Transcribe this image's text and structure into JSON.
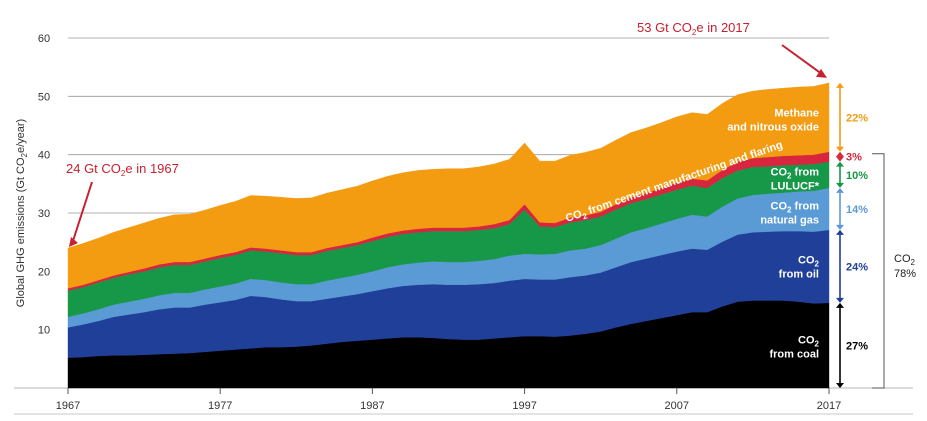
{
  "chart_data": {
    "type": "area",
    "stacked": true,
    "title": "",
    "ylabel_parts": [
      "Global GHG emissions (Gt CO",
      "2",
      "e/year)"
    ],
    "x_ticks": [
      1967,
      1977,
      1987,
      1997,
      2007,
      2017
    ],
    "y_ticks": [
      10,
      20,
      30,
      40,
      50,
      60
    ],
    "xlim": [
      1967,
      2017
    ],
    "ylim": [
      0,
      60
    ],
    "grid": "horizontal",
    "x": [
      1967,
      1968,
      1969,
      1970,
      1971,
      1972,
      1973,
      1974,
      1975,
      1976,
      1977,
      1978,
      1979,
      1980,
      1981,
      1982,
      1983,
      1984,
      1985,
      1986,
      1987,
      1988,
      1989,
      1990,
      1991,
      1992,
      1993,
      1994,
      1995,
      1996,
      1997,
      1998,
      1999,
      2000,
      2001,
      2002,
      2003,
      2004,
      2005,
      2006,
      2007,
      2008,
      2009,
      2010,
      2011,
      2012,
      2013,
      2014,
      2015,
      2016,
      2017
    ],
    "series": [
      {
        "key": "coal",
        "color": "#000000",
        "values": [
          5.2,
          5.3,
          5.5,
          5.6,
          5.6,
          5.7,
          5.8,
          5.9,
          6.0,
          6.2,
          6.4,
          6.6,
          6.8,
          7.0,
          7.0,
          7.1,
          7.3,
          7.6,
          7.9,
          8.1,
          8.3,
          8.5,
          8.7,
          8.7,
          8.6,
          8.4,
          8.3,
          8.3,
          8.5,
          8.7,
          8.9,
          8.9,
          8.8,
          9.0,
          9.3,
          9.7,
          10.4,
          11.0,
          11.5,
          12.0,
          12.5,
          13.0,
          13.0,
          14.0,
          14.8,
          15.0,
          15.0,
          15.0,
          14.8,
          14.5,
          14.6
        ]
      },
      {
        "key": "oil",
        "color": "#1f3f99",
        "values": [
          5.2,
          5.6,
          6.0,
          6.6,
          7.0,
          7.3,
          7.7,
          7.9,
          7.8,
          8.1,
          8.3,
          8.5,
          9.0,
          8.6,
          8.2,
          7.8,
          7.6,
          7.7,
          7.8,
          8.0,
          8.3,
          8.6,
          8.8,
          9.0,
          9.2,
          9.3,
          9.4,
          9.5,
          9.5,
          9.7,
          9.8,
          9.7,
          9.8,
          10.0,
          10.0,
          10.1,
          10.3,
          10.6,
          10.7,
          10.8,
          10.9,
          10.9,
          10.7,
          11.1,
          11.5,
          11.7,
          11.8,
          11.9,
          12.1,
          12.3,
          12.5
        ]
      },
      {
        "key": "gas",
        "color": "#5b9bd5",
        "values": [
          1.8,
          1.9,
          2.0,
          2.1,
          2.2,
          2.3,
          2.4,
          2.5,
          2.5,
          2.6,
          2.7,
          2.8,
          2.9,
          2.9,
          2.9,
          2.9,
          2.9,
          3.1,
          3.2,
          3.3,
          3.4,
          3.6,
          3.7,
          3.8,
          3.9,
          3.9,
          3.9,
          4.0,
          4.1,
          4.3,
          4.3,
          4.3,
          4.4,
          4.6,
          4.6,
          4.7,
          4.9,
          5.1,
          5.2,
          5.4,
          5.6,
          5.8,
          5.7,
          6.0,
          6.2,
          6.4,
          6.5,
          6.6,
          6.8,
          7.0,
          7.2
        ]
      },
      {
        "key": "lulucf",
        "color": "#169848",
        "values": [
          4.5,
          4.5,
          4.6,
          4.6,
          4.7,
          4.7,
          4.8,
          4.8,
          4.8,
          4.8,
          4.9,
          4.9,
          4.9,
          4.9,
          5.0,
          5.0,
          5.0,
          5.1,
          5.1,
          5.1,
          5.2,
          5.2,
          5.2,
          5.2,
          5.2,
          5.3,
          5.3,
          5.3,
          5.3,
          5.4,
          7.6,
          4.8,
          4.6,
          4.8,
          4.9,
          4.9,
          5.0,
          5.0,
          5.0,
          5.0,
          5.0,
          5.0,
          4.9,
          4.9,
          4.8,
          4.8,
          4.7,
          4.7,
          4.6,
          4.6,
          4.5
        ]
      },
      {
        "key": "cement",
        "color": "#d7263d",
        "values": [
          0.4,
          0.4,
          0.4,
          0.4,
          0.4,
          0.5,
          0.5,
          0.5,
          0.5,
          0.5,
          0.5,
          0.5,
          0.5,
          0.5,
          0.5,
          0.5,
          0.5,
          0.5,
          0.5,
          0.5,
          0.6,
          0.6,
          0.6,
          0.6,
          0.6,
          0.6,
          0.6,
          0.6,
          0.7,
          0.7,
          0.9,
          0.7,
          0.7,
          0.8,
          0.8,
          0.8,
          0.9,
          1.0,
          1.0,
          1.1,
          1.2,
          1.2,
          1.3,
          1.4,
          1.5,
          1.5,
          1.6,
          1.6,
          1.6,
          1.6,
          1.7
        ]
      },
      {
        "key": "methane",
        "color": "#f39c12",
        "values": [
          6.9,
          7.1,
          7.2,
          7.4,
          7.6,
          7.8,
          7.9,
          8.1,
          8.2,
          8.3,
          8.5,
          8.7,
          8.9,
          9.0,
          9.1,
          9.2,
          9.3,
          9.4,
          9.5,
          9.6,
          9.7,
          9.8,
          9.9,
          10.0,
          10.0,
          10.1,
          10.1,
          10.2,
          10.3,
          10.4,
          10.5,
          10.5,
          10.6,
          10.7,
          10.8,
          10.9,
          11.0,
          11.1,
          11.2,
          11.2,
          11.3,
          11.3,
          11.3,
          11.4,
          11.5,
          11.5,
          11.6,
          11.6,
          11.7,
          11.7,
          11.8
        ]
      }
    ],
    "shares": [
      {
        "key": "methane",
        "value": "22%",
        "color": "#f39c12"
      },
      {
        "key": "cement",
        "value": "3%",
        "color": "#d7263d"
      },
      {
        "key": "lulucf",
        "value": "10%",
        "color": "#169848"
      },
      {
        "key": "gas",
        "value": "14%",
        "color": "#5b9bd5"
      },
      {
        "key": "oil",
        "value": "24%",
        "color": "#1f3f99"
      },
      {
        "key": "coal",
        "value": "27%",
        "color": "#000000"
      }
    ],
    "area_labels": {
      "methane": [
        "Methane",
        "and nitrous oxide"
      ],
      "lulucf": [
        "from",
        "LULUCF*"
      ],
      "gas": [
        "from",
        "natural gas"
      ],
      "oil": [
        "from oil"
      ],
      "coal": [
        "from coal"
      ],
      "cement": [
        "from cement manufacturing and flaring"
      ]
    },
    "co2_label": {
      "prefix": "CO",
      "sub": "2",
      "share": "78%"
    },
    "annotations": {
      "start": {
        "prefix": "24 Gt CO",
        "sub": "2",
        "suffix": "e in 1967",
        "year": 1967,
        "value": 24
      },
      "end": {
        "prefix": "53 Gt CO",
        "sub": "2",
        "suffix": "e in 2017",
        "year": 2017,
        "value": 53
      }
    },
    "accent": "#c8202f"
  }
}
